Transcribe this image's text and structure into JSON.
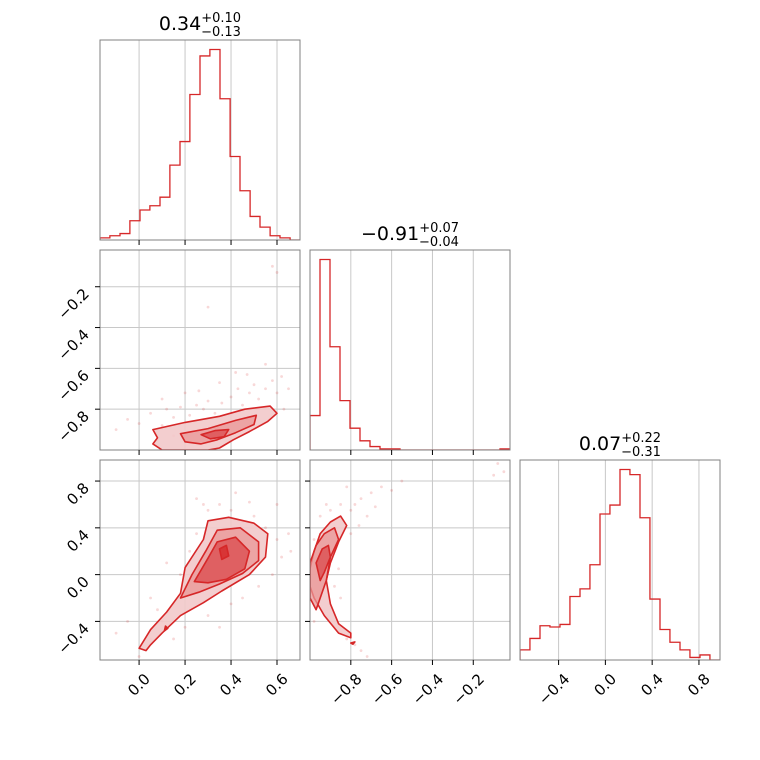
{
  "colors": {
    "accent": "#d62728",
    "fill_light": "#f2c9ca",
    "fill_mid": "#e99596",
    "fill_dark": "#db4a4c",
    "grid": "#c8c8c8",
    "frame": "#808080"
  },
  "chart_data": {
    "type": "corner",
    "parameters": [
      "p0",
      "p1",
      "p2"
    ],
    "titles": [
      {
        "value": "0.34",
        "plus": "+0.10",
        "minus": "−0.13"
      },
      {
        "value": "−0.91",
        "plus": "+0.07",
        "minus": "−0.04"
      },
      {
        "value": "0.07",
        "plus": "+0.22",
        "minus": "−0.31"
      }
    ],
    "ranges": [
      [
        -0.17,
        0.7
      ],
      [
        -1.0,
        -0.02
      ],
      [
        -0.73,
        0.98
      ]
    ],
    "ticks": [
      {
        "values": [
          0.0,
          0.2,
          0.4,
          0.6
        ],
        "labels": [
          "0.0",
          "0.2",
          "0.4",
          "0.6"
        ]
      },
      {
        "values": [
          -0.8,
          -0.6,
          -0.4,
          -0.2
        ],
        "labels": [
          "−0.8",
          "−0.6",
          "−0.4",
          "−0.2"
        ]
      },
      {
        "values": [
          -0.4,
          0.0,
          0.4,
          0.8
        ],
        "labels": [
          "−0.4",
          "0.0",
          "0.4",
          "0.8"
        ]
      }
    ],
    "grid": true,
    "histograms": [
      {
        "param": 0,
        "bin_edges": [
          -0.17,
          -0.127,
          -0.083,
          -0.04,
          0.004,
          0.047,
          0.091,
          0.134,
          0.178,
          0.221,
          0.265,
          0.308,
          0.352,
          0.396,
          0.439,
          0.483,
          0.526,
          0.57,
          0.613,
          0.657,
          0.7
        ],
        "counts": [
          1,
          2,
          3,
          9,
          14,
          16,
          20,
          35,
          46,
          68,
          86,
          89,
          66,
          39,
          23,
          11,
          6,
          2,
          1,
          0
        ]
      },
      {
        "param": 1,
        "bin_edges": [
          -1.0,
          -0.951,
          -0.902,
          -0.853,
          -0.804,
          -0.755,
          -0.706,
          -0.657,
          -0.608,
          -0.559,
          -0.51,
          -0.461,
          -0.412,
          -0.363,
          -0.314,
          -0.265,
          -0.216,
          -0.167,
          -0.118,
          -0.069,
          -0.02
        ],
        "counts": [
          30,
          166,
          90,
          43,
          19,
          8,
          3,
          1,
          1,
          0,
          0,
          0,
          0,
          0,
          0,
          0,
          0,
          0,
          0,
          1
        ]
      },
      {
        "param": 2,
        "bin_edges": [
          -0.73,
          -0.645,
          -0.559,
          -0.474,
          -0.388,
          -0.303,
          -0.217,
          -0.132,
          -0.046,
          0.039,
          0.125,
          0.21,
          0.296,
          0.381,
          0.467,
          0.552,
          0.638,
          0.723,
          0.809,
          0.894,
          0.98
        ],
        "counts": [
          8,
          17,
          27,
          26,
          28,
          50,
          56,
          75,
          115,
          122,
          150,
          146,
          112,
          48,
          24,
          14,
          8,
          2,
          4,
          0
        ]
      }
    ],
    "pairs": [
      {
        "x_param": 0,
        "y_param": 1,
        "contours": [
          [
            [
              0.06,
              -0.9
            ],
            [
              0.2,
              -0.865
            ],
            [
              0.35,
              -0.835
            ],
            [
              0.46,
              -0.8
            ],
            [
              0.57,
              -0.785
            ],
            [
              0.6,
              -0.82
            ],
            [
              0.56,
              -0.86
            ],
            [
              0.48,
              -0.91
            ],
            [
              0.41,
              -0.95
            ],
            [
              0.35,
              -0.99
            ],
            [
              0.3,
              -1.0
            ],
            [
              0.1,
              -1.0
            ],
            [
              0.06,
              -0.97
            ],
            [
              0.08,
              -0.94
            ]
          ],
          [
            [
              0.18,
              -0.92
            ],
            [
              0.3,
              -0.895
            ],
            [
              0.42,
              -0.855
            ],
            [
              0.51,
              -0.83
            ],
            [
              0.5,
              -0.875
            ],
            [
              0.42,
              -0.915
            ],
            [
              0.34,
              -0.95
            ],
            [
              0.27,
              -0.97
            ],
            [
              0.2,
              -0.96
            ]
          ],
          [
            [
              0.27,
              -0.925
            ],
            [
              0.33,
              -0.905
            ],
            [
              0.39,
              -0.9
            ],
            [
              0.37,
              -0.935
            ],
            [
              0.31,
              -0.945
            ]
          ]
        ],
        "points": [
          [
            -0.05,
            -0.85
          ],
          [
            0.0,
            -0.87
          ],
          [
            0.05,
            -0.82
          ],
          [
            0.1,
            -0.88
          ],
          [
            0.12,
            -0.8
          ],
          [
            0.15,
            -0.84
          ],
          [
            0.18,
            -0.79
          ],
          [
            0.22,
            -0.83
          ],
          [
            0.25,
            -0.78
          ],
          [
            0.28,
            -0.8
          ],
          [
            0.3,
            -0.76
          ],
          [
            0.33,
            -0.82
          ],
          [
            0.36,
            -0.77
          ],
          [
            0.4,
            -0.74
          ],
          [
            0.43,
            -0.7
          ],
          [
            0.45,
            -0.78
          ],
          [
            0.48,
            -0.72
          ],
          [
            0.5,
            -0.68
          ],
          [
            0.52,
            -0.75
          ],
          [
            0.55,
            -0.7
          ],
          [
            0.58,
            -0.66
          ],
          [
            0.6,
            -0.72
          ],
          [
            0.62,
            -0.64
          ],
          [
            0.65,
            -0.7
          ],
          [
            0.42,
            -0.62
          ],
          [
            0.55,
            -0.58
          ],
          [
            0.6,
            -0.13
          ],
          [
            0.58,
            -0.1
          ],
          [
            0.3,
            -0.3
          ],
          [
            -0.1,
            -0.9
          ],
          [
            0.08,
            -0.95
          ],
          [
            0.35,
            -0.67
          ],
          [
            0.47,
            -0.63
          ],
          [
            0.2,
            -0.72
          ],
          [
            0.15,
            -0.93
          ],
          [
            0.63,
            -0.8
          ],
          [
            0.1,
            -0.75
          ],
          [
            0.26,
            -0.71
          ]
        ]
      },
      {
        "x_param": 0,
        "y_param": 2,
        "contours": [
          [
            [
              0.0,
              -0.63
            ],
            [
              0.05,
              -0.47
            ],
            [
              0.12,
              -0.32
            ],
            [
              0.18,
              -0.16
            ],
            [
              0.2,
              0.06
            ],
            [
              0.28,
              0.3
            ],
            [
              0.3,
              0.46
            ],
            [
              0.39,
              0.49
            ],
            [
              0.5,
              0.44
            ],
            [
              0.56,
              0.35
            ],
            [
              0.55,
              0.15
            ],
            [
              0.48,
              0.0
            ],
            [
              0.36,
              -0.14
            ],
            [
              0.28,
              -0.24
            ],
            [
              0.18,
              -0.35
            ],
            [
              0.1,
              -0.5
            ],
            [
              0.05,
              -0.6
            ],
            [
              0.03,
              -0.65
            ]
          ],
          [
            [
              0.18,
              -0.2
            ],
            [
              0.23,
              0.0
            ],
            [
              0.29,
              0.2
            ],
            [
              0.34,
              0.38
            ],
            [
              0.44,
              0.4
            ],
            [
              0.52,
              0.28
            ],
            [
              0.52,
              0.12
            ],
            [
              0.45,
              0.01
            ],
            [
              0.35,
              -0.08
            ],
            [
              0.26,
              -0.15
            ]
          ],
          [
            [
              0.24,
              -0.06
            ],
            [
              0.3,
              0.14
            ],
            [
              0.34,
              0.28
            ],
            [
              0.42,
              0.32
            ],
            [
              0.48,
              0.2
            ],
            [
              0.46,
              0.05
            ],
            [
              0.38,
              -0.04
            ],
            [
              0.3,
              -0.07
            ]
          ],
          [
            [
              0.36,
              0.13
            ],
            [
              0.35,
              0.22
            ],
            [
              0.38,
              0.25
            ],
            [
              0.39,
              0.16
            ]
          ],
          [
            [
              0.11,
              -0.48
            ],
            [
              0.115,
              -0.44
            ],
            [
              0.125,
              -0.46
            ]
          ]
        ],
        "points": [
          [
            0.0,
            -0.7
          ],
          [
            0.05,
            -0.55
          ],
          [
            0.1,
            -0.4
          ],
          [
            0.15,
            -0.25
          ],
          [
            0.2,
            -0.1
          ],
          [
            0.22,
            0.2
          ],
          [
            0.25,
            0.35
          ],
          [
            0.3,
            0.55
          ],
          [
            0.35,
            0.6
          ],
          [
            0.4,
            0.55
          ],
          [
            0.45,
            0.45
          ],
          [
            0.5,
            0.5
          ],
          [
            0.55,
            0.4
          ],
          [
            0.6,
            0.3
          ],
          [
            0.62,
            0.15
          ],
          [
            0.58,
            0.0
          ],
          [
            0.52,
            -0.1
          ],
          [
            0.45,
            -0.2
          ],
          [
            0.4,
            -0.25
          ],
          [
            0.3,
            -0.35
          ],
          [
            0.2,
            -0.45
          ],
          [
            0.15,
            -0.55
          ],
          [
            0.08,
            -0.3
          ],
          [
            -0.05,
            -0.4
          ],
          [
            -0.1,
            -0.5
          ],
          [
            0.25,
            0.65
          ],
          [
            0.6,
            0.6
          ],
          [
            0.65,
            0.35
          ],
          [
            0.35,
            -0.45
          ],
          [
            0.12,
            0.1
          ],
          [
            0.28,
            0.6
          ],
          [
            0.48,
            0.62
          ],
          [
            0.05,
            -0.2
          ],
          [
            0.42,
            0.7
          ],
          [
            0.18,
            0.0
          ],
          [
            0.66,
            0.2
          ]
        ]
      },
      {
        "x_param": 1,
        "y_param": 2,
        "contours": [
          [
            [
              -1.0,
              0.05
            ],
            [
              -0.98,
              0.2
            ],
            [
              -0.95,
              0.35
            ],
            [
              -0.9,
              0.45
            ],
            [
              -0.85,
              0.5
            ],
            [
              -0.82,
              0.42
            ],
            [
              -0.86,
              0.28
            ],
            [
              -0.9,
              0.1
            ],
            [
              -0.92,
              -0.05
            ],
            [
              -0.9,
              -0.25
            ],
            [
              -0.86,
              -0.42
            ],
            [
              -0.8,
              -0.5
            ],
            [
              -0.8,
              -0.54
            ],
            [
              -0.86,
              -0.5
            ],
            [
              -0.93,
              -0.35
            ],
            [
              -0.98,
              -0.2
            ],
            [
              -1.0,
              -0.1
            ]
          ],
          [
            [
              -1.0,
              0.1
            ],
            [
              -0.97,
              0.25
            ],
            [
              -0.93,
              0.35
            ],
            [
              -0.88,
              0.4
            ],
            [
              -0.86,
              0.3
            ],
            [
              -0.9,
              0.15
            ],
            [
              -0.92,
              -0.05
            ],
            [
              -0.95,
              -0.2
            ],
            [
              -0.97,
              -0.3
            ],
            [
              -1.0,
              -0.2
            ]
          ],
          [
            [
              -0.97,
              0.1
            ],
            [
              -0.94,
              0.22
            ],
            [
              -0.91,
              0.25
            ],
            [
              -0.9,
              0.15
            ],
            [
              -0.93,
              0.02
            ],
            [
              -0.95,
              -0.05
            ]
          ],
          [
            [
              -0.8,
              -0.585
            ],
            [
              -0.78,
              -0.575
            ],
            [
              -0.79,
              -0.595
            ]
          ]
        ],
        "points": [
          [
            -0.98,
            0.3
          ],
          [
            -0.95,
            0.5
          ],
          [
            -0.9,
            0.55
          ],
          [
            -0.85,
            0.6
          ],
          [
            -0.8,
            0.55
          ],
          [
            -0.78,
            0.6
          ],
          [
            -0.75,
            0.65
          ],
          [
            -0.7,
            0.7
          ],
          [
            -0.72,
            0.5
          ],
          [
            -0.8,
            0.35
          ],
          [
            -0.88,
            -0.1
          ],
          [
            -0.85,
            -0.2
          ],
          [
            -0.82,
            -0.55
          ],
          [
            -0.78,
            -0.6
          ],
          [
            -0.75,
            -0.65
          ],
          [
            -0.72,
            -0.7
          ],
          [
            -0.65,
            0.75
          ],
          [
            -0.6,
            0.72
          ],
          [
            -0.55,
            0.8
          ],
          [
            -0.1,
            0.85
          ],
          [
            -0.08,
            0.95
          ],
          [
            -0.05,
            0.88
          ],
          [
            -0.98,
            -0.4
          ],
          [
            -0.92,
            0.6
          ],
          [
            -0.82,
            0.75
          ],
          [
            -0.86,
            0.05
          ],
          [
            -0.68,
            0.58
          ],
          [
            -0.76,
            0.42
          ]
        ]
      }
    ]
  }
}
